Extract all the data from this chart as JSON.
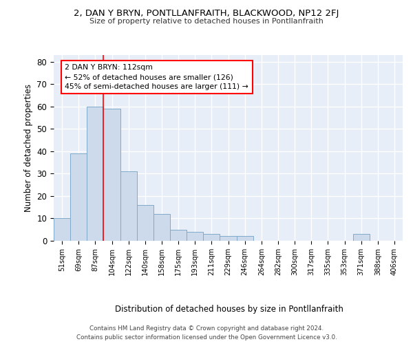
{
  "title1": "2, DAN Y BRYN, PONTLLANFRAITH, BLACKWOOD, NP12 2FJ",
  "title2": "Size of property relative to detached houses in Pontllanfraith",
  "xlabel": "Distribution of detached houses by size in Pontllanfraith",
  "ylabel": "Number of detached properties",
  "bin_labels": [
    "51sqm",
    "69sqm",
    "87sqm",
    "104sqm",
    "122sqm",
    "140sqm",
    "158sqm",
    "175sqm",
    "193sqm",
    "211sqm",
    "229sqm",
    "246sqm",
    "264sqm",
    "282sqm",
    "300sqm",
    "317sqm",
    "335sqm",
    "353sqm",
    "371sqm",
    "388sqm",
    "406sqm"
  ],
  "bar_heights": [
    10,
    39,
    60,
    59,
    31,
    16,
    12,
    5,
    4,
    3,
    2,
    2,
    0,
    0,
    0,
    0,
    0,
    0,
    3,
    0,
    0
  ],
  "bar_color": "#ccdaeb",
  "bar_edge_color": "#7faac8",
  "red_line_bin_index": 3,
  "annotation_line1": "2 DAN Y BRYN: 112sqm",
  "annotation_line2": "← 52% of detached houses are smaller (126)",
  "annotation_line3": "45% of semi-detached houses are larger (111) →",
  "annotation_box_facecolor": "white",
  "annotation_box_edgecolor": "red",
  "ylim": [
    0,
    83
  ],
  "yticks": [
    0,
    10,
    20,
    30,
    40,
    50,
    60,
    70,
    80
  ],
  "bg_color": "#e8eef8",
  "grid_color": "#ffffff",
  "footer1": "Contains HM Land Registry data © Crown copyright and database right 2024.",
  "footer2": "Contains public sector information licensed under the Open Government Licence v3.0."
}
